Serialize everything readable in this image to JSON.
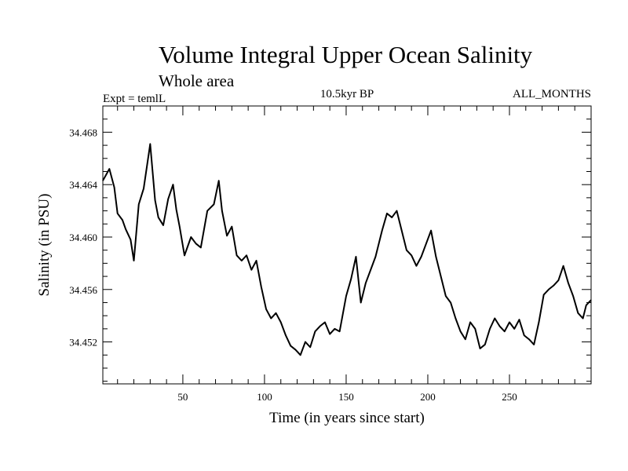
{
  "chart_data": {
    "type": "line",
    "title": "Volume Integral Upper Ocean Salinity",
    "subtitle": "Whole area",
    "left_note": "Expt = temlL",
    "center_note": "10.5kyr BP",
    "right_note": "ALL_MONTHS",
    "xlabel": "Time (in years since start)",
    "ylabel": "Salinity (in PSU)",
    "xlim": [
      1,
      300
    ],
    "ylim": [
      34.4488,
      34.47
    ],
    "x_ticks": [
      50,
      100,
      150,
      200,
      250
    ],
    "y_ticks": [
      34.452,
      34.456,
      34.46,
      34.464,
      34.468
    ],
    "x_tick_labels": [
      "50",
      "100",
      "150",
      "200",
      "250"
    ],
    "y_tick_labels": [
      "34.452",
      "34.456",
      "34.460",
      "34.464",
      "34.468"
    ],
    "x_minor_step": 10,
    "y_minor_step": 0.001,
    "series": [
      {
        "name": "salinity",
        "color": "#000000",
        "x": [
          1,
          5,
          8,
          10,
          13,
          15,
          18,
          20,
          23,
          26,
          30,
          33,
          35,
          38,
          41,
          44,
          46,
          48,
          51,
          55,
          58,
          61,
          65,
          69,
          72,
          74,
          77,
          80,
          83,
          86,
          89,
          92,
          95,
          98,
          101,
          104,
          107,
          110,
          113,
          116,
          119,
          122,
          125,
          128,
          131,
          134,
          137,
          140,
          143,
          146,
          150,
          153,
          156,
          159,
          162,
          165,
          168,
          172,
          175,
          178,
          181,
          184,
          187,
          190,
          193,
          196,
          199,
          202,
          205,
          208,
          211,
          214,
          217,
          220,
          223,
          226,
          229,
          232,
          235,
          238,
          241,
          244,
          247,
          250,
          253,
          256,
          259,
          262,
          265,
          268,
          271,
          274,
          277,
          280,
          283,
          286,
          289,
          292,
          295,
          297,
          300
        ],
        "y": [
          34.4643,
          34.4652,
          34.4638,
          34.4618,
          34.4613,
          34.4606,
          34.4598,
          34.4582,
          34.4625,
          34.4637,
          34.4671,
          34.4628,
          34.4615,
          34.4609,
          34.4629,
          34.464,
          34.4621,
          34.4608,
          34.4586,
          34.46,
          34.4595,
          34.4592,
          34.462,
          34.4625,
          34.4643,
          34.462,
          34.4601,
          34.4608,
          34.4586,
          34.4582,
          34.4586,
          34.4575,
          34.4582,
          34.4562,
          34.4545,
          34.4538,
          34.4542,
          34.4535,
          34.4525,
          34.4517,
          34.4514,
          34.451,
          34.452,
          34.4516,
          34.4528,
          34.4532,
          34.4535,
          34.4526,
          34.453,
          34.4528,
          34.4555,
          34.4568,
          34.4585,
          34.455,
          34.4565,
          34.4575,
          34.4585,
          34.4605,
          34.4618,
          34.4615,
          34.462,
          34.4605,
          34.459,
          34.4586,
          34.4578,
          34.4585,
          34.4595,
          34.4605,
          34.4585,
          34.457,
          34.4555,
          34.455,
          34.4538,
          34.4528,
          34.4522,
          34.4535,
          34.453,
          34.4515,
          34.4518,
          34.453,
          34.4538,
          34.4532,
          34.4528,
          34.4535,
          34.453,
          34.4537,
          34.4525,
          34.4522,
          34.4518,
          34.4535,
          34.4556,
          34.456,
          34.4563,
          34.4567,
          34.4578,
          34.4565,
          34.4555,
          34.4542,
          34.4538,
          34.4548,
          34.4552
        ]
      }
    ]
  }
}
